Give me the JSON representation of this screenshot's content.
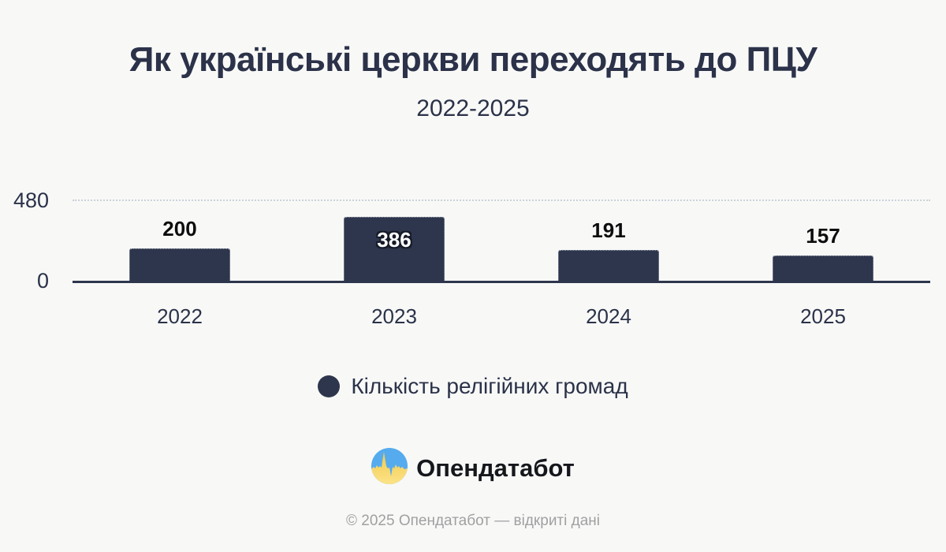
{
  "header": {
    "title": "Як українські церкви переходять до ПЦУ",
    "subtitle": "2022-2025"
  },
  "chart_data": {
    "type": "bar",
    "categories": [
      "2022",
      "2023",
      "2024",
      "2025"
    ],
    "values": [
      200,
      386,
      191,
      157
    ],
    "series_name": "Кількість релігійних громад",
    "title": "Як українські церкви переходять до ПЦУ 2022-2025",
    "xlabel": "",
    "ylabel": "",
    "ylim": [
      0,
      480
    ],
    "yticks": [
      0,
      480
    ],
    "grid": "single dotted horizontal gridline at y=480",
    "legend_position": "bottom",
    "bar_color": "#2e364d",
    "value_label_color_outside": "#0d0d0d",
    "value_label_color_inside": "#ffffff"
  },
  "colors": {
    "background": "#f8f9f7",
    "text_navy": "#2b3249",
    "axis": "#2e364d",
    "gridline": "#ccd1d9",
    "footer_gray": "#9fa0a0"
  },
  "branding": {
    "logo_icon": "opendatabot-logo-icon",
    "logo_text": "Опендатабот",
    "logo_blue": "#56abee",
    "logo_yellow_top": "#f2c94c",
    "logo_yellow_bottom": "#fce388"
  },
  "footer": {
    "text": "© 2025 Опендатабот — відкриті дані"
  }
}
